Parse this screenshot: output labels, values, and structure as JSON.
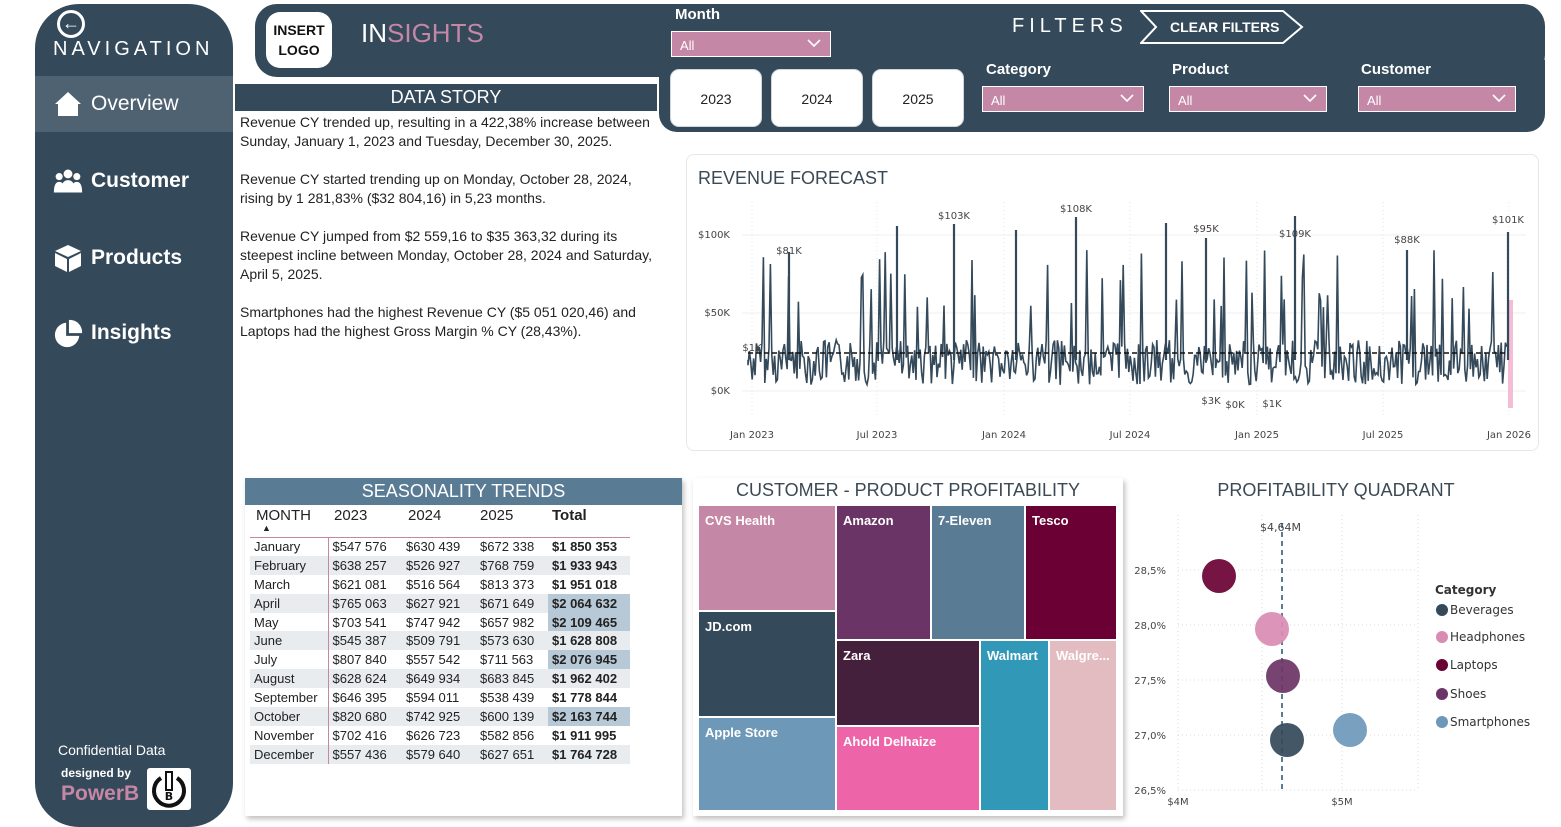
{
  "nav": {
    "title": "NAVIGATION",
    "items": [
      {
        "label": "Overview",
        "icon": "home-icon"
      },
      {
        "label": "Customer",
        "icon": "users-icon"
      },
      {
        "label": "Products",
        "icon": "box-icon"
      },
      {
        "label": "Insights",
        "icon": "pie-chart-icon"
      }
    ],
    "confidential": "Confidential Data",
    "designed_by": "designed by",
    "brand": "PowerB"
  },
  "header": {
    "logo_line1": "INSERT",
    "logo_line2": "LOGO",
    "title_prefix": "IN",
    "title_suffix": "SIGHTS",
    "filters_label": "FILTERS",
    "clear_filters": "CLEAR FILTERS",
    "month": {
      "label": "Month",
      "value": "All"
    },
    "years": [
      "2023",
      "2024",
      "2025"
    ],
    "category": {
      "label": "Category",
      "value": "All"
    },
    "product": {
      "label": "Product",
      "value": "All"
    },
    "customer": {
      "label": "Customer",
      "value": "All"
    }
  },
  "story": {
    "title": "DATA STORY",
    "paragraphs": [
      "Revenue CY trended up, resulting in a 422,38% increase between Sunday, January 1, 2023 and Tuesday, December 30, 2025.",
      "Revenue CY started trending up on Monday, October 28, 2024, rising by 1 281,83% ($32 804,16) in 5,23 months.",
      "Revenue CY jumped from $2 559,16 to $35 363,32 during its steepest incline between Monday, October 28, 2024 and Saturday, April 5, 2025.",
      "Smartphones had the highest Revenue CY ($5 051 020,46) and Laptops had the highest Gross Margin % CY (28,43%)."
    ]
  },
  "forecast": {
    "title": "REVENUE FORECAST",
    "y_ticks": [
      "$100K",
      "$50K",
      "$0K"
    ],
    "x_ticks": [
      "Jan 2023",
      "Jul 2023",
      "Jan 2024",
      "Jul 2024",
      "Jan 2025",
      "Jul 2025",
      "Jan 2026"
    ],
    "annotations": [
      "$81K",
      "$103K",
      "$108K",
      "$95K",
      "$109K",
      "$88K",
      "$101K",
      "$3K",
      "$0K",
      "$1K",
      "$1K"
    ],
    "line_color": "#34495a"
  },
  "season": {
    "title": "SEASONALITY TRENDS",
    "columns": [
      "MONTH",
      "2023",
      "2024",
      "2025",
      "Total"
    ],
    "rows": [
      [
        "January",
        "$547 576",
        "$630 439",
        "$672 338",
        "$1 850 353"
      ],
      [
        "February",
        "$638 257",
        "$526 927",
        "$768 759",
        "$1 933 943"
      ],
      [
        "March",
        "$621 081",
        "$516 564",
        "$813 373",
        "$1 951 018"
      ],
      [
        "April",
        "$765 063",
        "$627 921",
        "$671 649",
        "$2 064 632"
      ],
      [
        "May",
        "$703 541",
        "$747 942",
        "$657 982",
        "$2 109 465"
      ],
      [
        "June",
        "$545 387",
        "$509 791",
        "$573 630",
        "$1 628 808"
      ],
      [
        "July",
        "$807 840",
        "$557 542",
        "$711 563",
        "$2 076 945"
      ],
      [
        "August",
        "$628 624",
        "$649 934",
        "$683 845",
        "$1 962 402"
      ],
      [
        "September",
        "$646 395",
        "$594 011",
        "$538 439",
        "$1 778 844"
      ],
      [
        "October",
        "$820 680",
        "$742 925",
        "$600 139",
        "$2 163 744"
      ],
      [
        "November",
        "$702 416",
        "$626 723",
        "$582 856",
        "$1 911 995"
      ],
      [
        "December",
        "$557 436",
        "$579 640",
        "$627 651",
        "$1 764 728"
      ]
    ]
  },
  "treemap": {
    "title": "CUSTOMER - PRODUCT PROFITABILITY",
    "tiles": [
      {
        "label": "CVS Health",
        "color": "#c587a6"
      },
      {
        "label": "Amazon",
        "color": "#6b3466"
      },
      {
        "label": "7-Eleven",
        "color": "#5a7b94"
      },
      {
        "label": "Tesco",
        "color": "#6a0033"
      },
      {
        "label": "JD.com",
        "color": "#34495a"
      },
      {
        "label": "Zara",
        "color": "#45203d"
      },
      {
        "label": "Walmart",
        "color": "#3298b7"
      },
      {
        "label": "Walgre...",
        "color": "#e2bcc0"
      },
      {
        "label": "Apple Store",
        "color": "#6e98b8"
      },
      {
        "label": "Ahold Delhaize",
        "color": "#ed65a8"
      }
    ]
  },
  "quadrant": {
    "title": "PROFITABILITY QUADRANT",
    "ref_label": "$4,64M",
    "y_ticks": [
      "28,5%",
      "28,0%",
      "27,5%",
      "27,0%",
      "26,5%"
    ],
    "x_ticks": [
      "$4M",
      "$5M"
    ],
    "legend_title": "Category",
    "legend": [
      {
        "name": "Beverages",
        "color": "#34495a"
      },
      {
        "name": "Headphones",
        "color": "#d98cb3"
      },
      {
        "name": "Laptops",
        "color": "#6a0033"
      },
      {
        "name": "Shoes",
        "color": "#6b3466"
      },
      {
        "name": "Smartphones",
        "color": "#6e98b8"
      }
    ]
  }
}
